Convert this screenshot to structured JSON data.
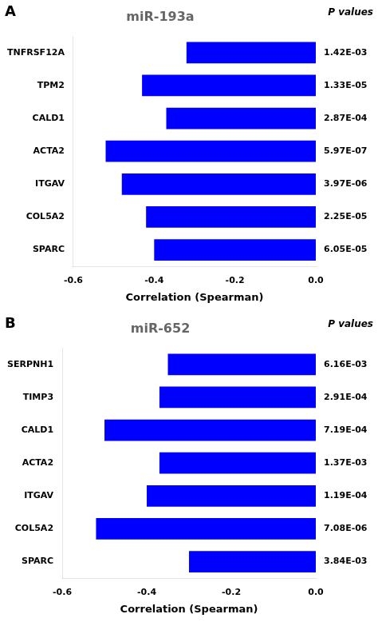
{
  "chart_data": [
    {
      "type": "bar",
      "orientation": "horizontal",
      "title": "miR-193a",
      "annotations": [
        "A",
        "P values"
      ],
      "categories": [
        "TNFRSF12A",
        "TPM2",
        "CALD1",
        "ACTA2",
        "ITGAV",
        "COL5A2",
        "SPARC"
      ],
      "values": [
        -0.32,
        -0.43,
        -0.37,
        -0.52,
        -0.48,
        -0.42,
        -0.4
      ],
      "pvalues": [
        "1.42E-03",
        "1.33E-05",
        "2.87E-04",
        "5.97E-07",
        "3.97E-06",
        "2.25E-05",
        "6.05E-05"
      ],
      "color": "#0000ff",
      "xlim": [
        -0.6,
        0.0
      ],
      "xticks": [
        -0.6,
        -0.4,
        -0.2,
        {
          "value": 0,
          "label": "0.0"
        }
      ],
      "xlabel": "Correlation (Spearman)",
      "grid": false
    },
    {
      "type": "bar",
      "orientation": "horizontal",
      "title": "miR-652",
      "annotations": [
        "B",
        "P values"
      ],
      "categories": [
        "SERPNH1",
        "TIMP3",
        "CALD1",
        "ACTA2",
        "ITGAV",
        "COL5A2",
        "SPARC"
      ],
      "values": [
        -0.35,
        -0.37,
        -0.5,
        -0.37,
        -0.4,
        -0.52,
        -0.3
      ],
      "pvalues": [
        "6.16E-03",
        "2.91E-04",
        "7.19E-04",
        "1.37E-03",
        "1.19E-04",
        "7.08E-06",
        "3.84E-03"
      ],
      "color": "#0000ff",
      "xlim": [
        -0.6,
        0.0
      ],
      "xticks": [
        -0.6,
        -0.4,
        -0.2,
        {
          "value": 0,
          "label": "0.0"
        }
      ],
      "xlabel": "Correlation (Spearman)",
      "grid": false
    }
  ]
}
